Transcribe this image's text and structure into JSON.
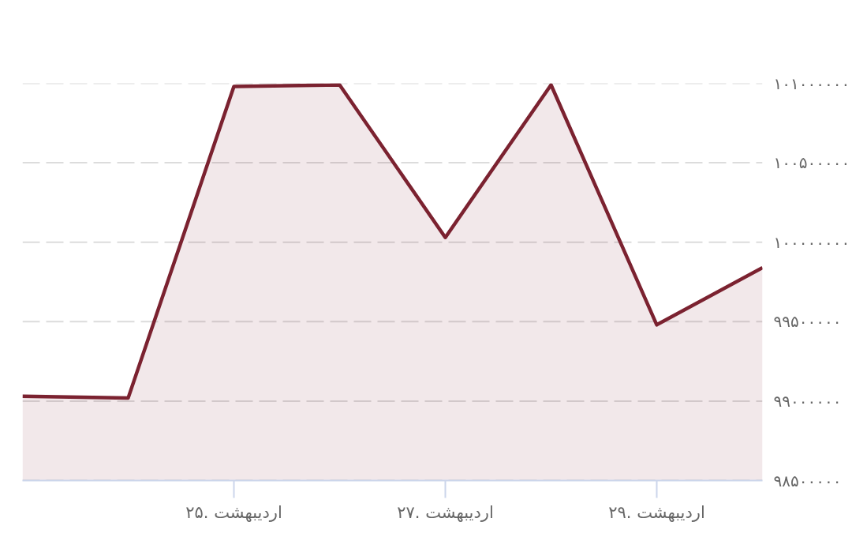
{
  "chart_data": {
    "type": "area",
    "categories": [
      null,
      null,
      "اردیبهشت .۲۵",
      null,
      "اردیبهشت .۲۷",
      null,
      "اردیبهشت .۲۹",
      null
    ],
    "values": [
      99030000,
      99020000,
      100980000,
      100990000,
      100030000,
      100990000,
      99480000,
      99840000
    ],
    "color": "#7b2230",
    "ylim": [
      98500000,
      101000000
    ],
    "yticks": [
      {
        "value": 98500000,
        "label": "۹۸۵۰۰۰۰۰"
      },
      {
        "value": 99000000,
        "label": "۹۹۰۰۰۰۰۰"
      },
      {
        "value": 99500000,
        "label": "۹۹۵۰۰۰۰۰"
      },
      {
        "value": 100000000,
        "label": "۱۰۰۰۰۰۰۰۰"
      },
      {
        "value": 100500000,
        "label": "۱۰۰۵۰۰۰۰۰"
      },
      {
        "value": 101000000,
        "label": "۱۰۱۰۰۰۰۰۰"
      }
    ],
    "grid": "y"
  }
}
